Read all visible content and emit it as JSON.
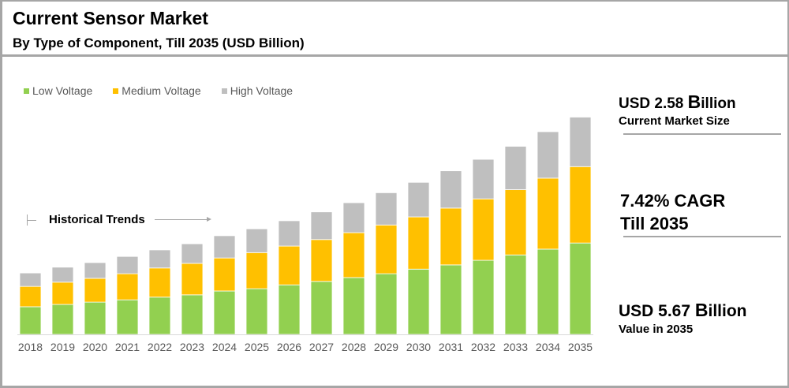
{
  "header": {
    "title": "Current Sensor Market",
    "subtitle": "By Type of Component, Till 2035 (USD Billion)"
  },
  "legend": [
    {
      "label": "Low Voltage",
      "color": "#92d050"
    },
    {
      "label": "Medium Voltage",
      "color": "#ffc000"
    },
    {
      "label": "High Voltage",
      "color": "#bfbfbf"
    }
  ],
  "annotation": {
    "historical_label": "Historical Trends"
  },
  "kpis": {
    "current": {
      "prefix": "USD 2.58 ",
      "cap": "B",
      "suffix": "illion",
      "caption": "Current Market Size"
    },
    "cagr": {
      "line1": "7.42% CAGR",
      "line2": "Till 2035"
    },
    "future": {
      "prefix": "USD 5.67 ",
      "cap": "B",
      "suffix": "illion",
      "caption": "Value in 2035"
    }
  },
  "chart_data": {
    "type": "bar",
    "stacked": true,
    "title": "Current Sensor Market",
    "subtitle": "By Type of Component, Till 2035 (USD Billion)",
    "xlabel": "",
    "ylabel": "USD Billion",
    "ylim": [
      0,
      6
    ],
    "grid": false,
    "legend_position": "top-left",
    "categories": [
      "2018",
      "2019",
      "2020",
      "2021",
      "2022",
      "2023",
      "2024",
      "2025",
      "2026",
      "2027",
      "2028",
      "2029",
      "2030",
      "2031",
      "2032",
      "2033",
      "2034",
      "2035"
    ],
    "series": [
      {
        "name": "Low Voltage",
        "color": "#92d050",
        "values": [
          0.72,
          0.78,
          0.84,
          0.9,
          0.97,
          1.03,
          1.13,
          1.19,
          1.29,
          1.38,
          1.48,
          1.58,
          1.7,
          1.81,
          1.93,
          2.07,
          2.22,
          2.38
        ]
      },
      {
        "name": "Medium Voltage",
        "color": "#ffc000",
        "values": [
          0.53,
          0.58,
          0.62,
          0.68,
          0.76,
          0.82,
          0.86,
          0.94,
          1.01,
          1.09,
          1.17,
          1.27,
          1.36,
          1.48,
          1.6,
          1.7,
          1.85,
          1.99
        ]
      },
      {
        "name": "High Voltage",
        "color": "#bfbfbf",
        "values": [
          0.35,
          0.39,
          0.41,
          0.45,
          0.47,
          0.51,
          0.58,
          0.62,
          0.66,
          0.72,
          0.78,
          0.84,
          0.9,
          0.97,
          1.03,
          1.13,
          1.21,
          1.29
        ]
      }
    ],
    "annotations": [
      "Historical Trends"
    ]
  }
}
